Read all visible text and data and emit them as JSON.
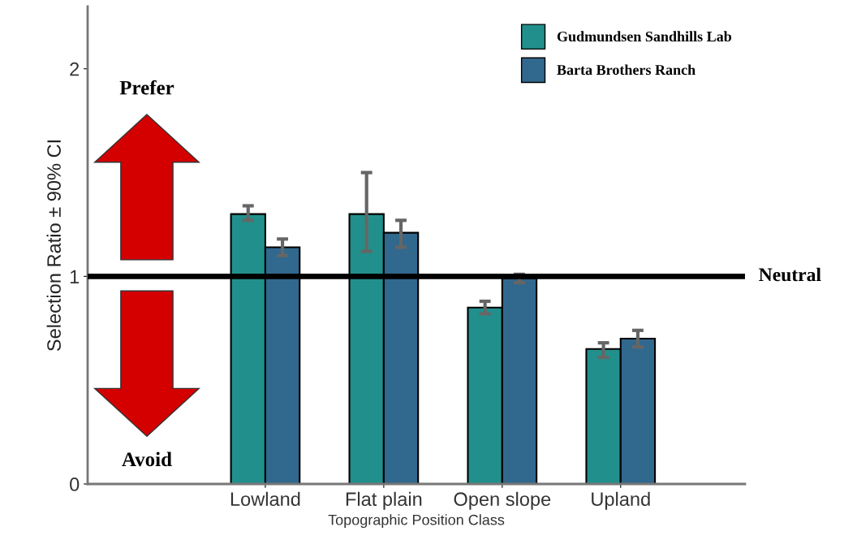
{
  "chart_data": {
    "type": "bar",
    "xlabel": "Topographic Position Class",
    "ylabel": "Selection Ratio ± 90% CI",
    "categories": [
      "Lowland",
      "Flat plain",
      "Open slope",
      "Upland"
    ],
    "series": [
      {
        "name": "Gudmundsen Sandhills Lab",
        "color": "#21908c",
        "values": [
          1.3,
          1.3,
          0.85,
          0.65
        ],
        "errors": [
          [
            1.27,
            1.34
          ],
          [
            1.12,
            1.5
          ],
          [
            0.82,
            0.88
          ],
          [
            0.61,
            0.68
          ]
        ]
      },
      {
        "name": "Barta Brothers Ranch",
        "color": "#31688e",
        "values": [
          1.14,
          1.21,
          0.99,
          0.7
        ],
        "errors": [
          [
            1.1,
            1.18
          ],
          [
            1.14,
            1.27
          ],
          [
            0.97,
            1.01
          ],
          [
            0.66,
            0.74
          ]
        ]
      }
    ],
    "ylim": [
      0,
      2.3
    ],
    "yticks": [
      0,
      1,
      2
    ],
    "grid": false,
    "legend": "top right",
    "ref_lines": [
      {
        "axis": "y",
        "value": 1,
        "label": "Neutral",
        "color": "#000000"
      }
    ],
    "annotations": [
      "Prefer",
      "Avoid"
    ]
  }
}
